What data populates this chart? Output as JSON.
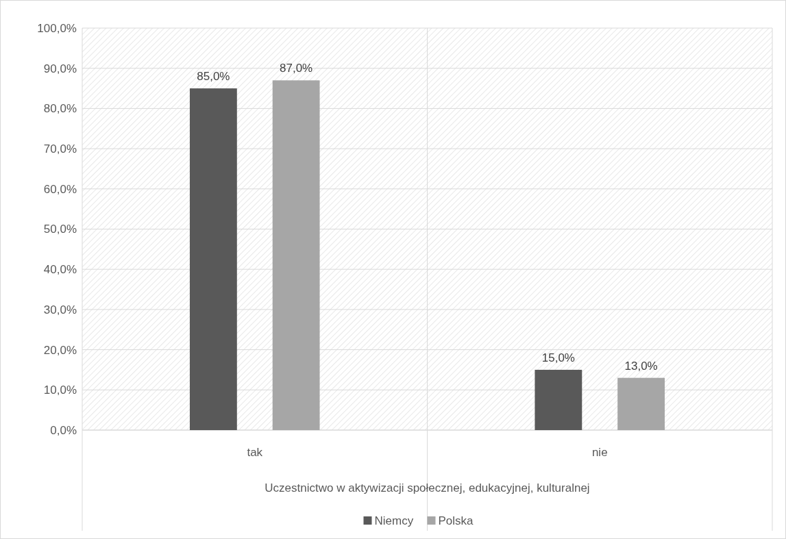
{
  "chart_data": {
    "type": "bar",
    "xlabel": "Uczestnictwo w aktywizacji społecznej, edukacyjnej, kulturalnej",
    "categories": [
      "tak",
      "nie"
    ],
    "series": [
      {
        "name": "Niemcy",
        "color": "#595959",
        "values": [
          85,
          15
        ],
        "value_labels": [
          "85,0%",
          "15,0%"
        ]
      },
      {
        "name": "Polska",
        "color": "#a6a6a6",
        "values": [
          87,
          13
        ],
        "value_labels": [
          "87,0%",
          "13,0%"
        ]
      }
    ],
    "ylim": [
      0,
      100
    ],
    "yticks": [
      {
        "value": 0,
        "label": "0,0%"
      },
      {
        "value": 10,
        "label": "10,0%"
      },
      {
        "value": 20,
        "label": "20,0%"
      },
      {
        "value": 30,
        "label": "30,0%"
      },
      {
        "value": 40,
        "label": "40,0%"
      },
      {
        "value": 50,
        "label": "50,0%"
      },
      {
        "value": 60,
        "label": "60,0%"
      },
      {
        "value": 70,
        "label": "70,0%"
      },
      {
        "value": 80,
        "label": "80,0%"
      },
      {
        "value": 90,
        "label": "90,0%"
      },
      {
        "value": 100,
        "label": "100,0%"
      }
    ],
    "grid": "y",
    "legend": "bottom"
  }
}
